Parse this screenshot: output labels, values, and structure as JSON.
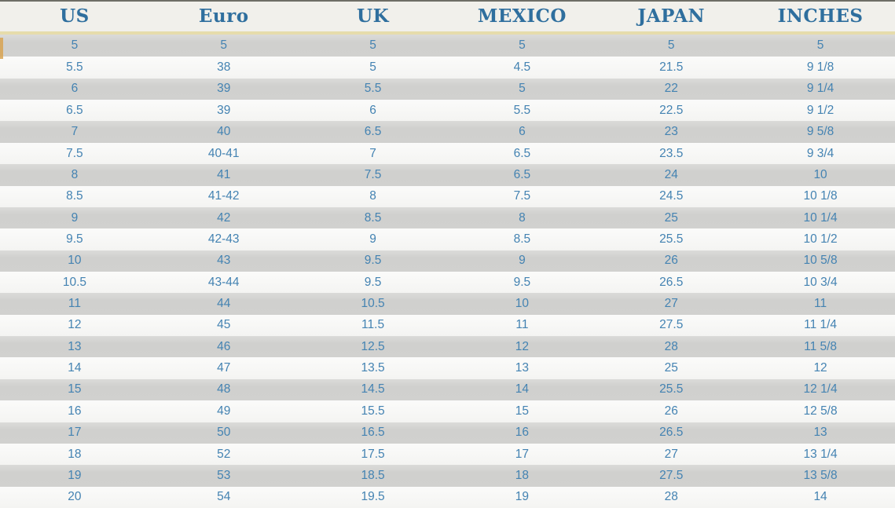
{
  "table": {
    "headers": [
      "US",
      "Euro",
      "UK",
      "MEXICO",
      "JAPAN",
      "INCHES"
    ],
    "rows": [
      [
        "5",
        "5",
        "5",
        "5",
        "5",
        "5"
      ],
      [
        "5.5",
        "38",
        "5",
        "4.5",
        "21.5",
        "9 1/8"
      ],
      [
        "6",
        "39",
        "5.5",
        "5",
        "22",
        "9 1/4"
      ],
      [
        "6.5",
        "39",
        "6",
        "5.5",
        "22.5",
        "9 1/2"
      ],
      [
        "7",
        "40",
        "6.5",
        "6",
        "23",
        "9 5/8"
      ],
      [
        "7.5",
        "40-41",
        "7",
        "6.5",
        "23.5",
        "9 3/4"
      ],
      [
        "8",
        "41",
        "7.5",
        "6.5",
        "24",
        "10"
      ],
      [
        "8.5",
        "41-42",
        "8",
        "7.5",
        "24.5",
        "10 1/8"
      ],
      [
        "9",
        "42",
        "8.5",
        "8",
        "25",
        "10 1/4"
      ],
      [
        "9.5",
        "42-43",
        "9",
        "8.5",
        "25.5",
        "10 1/2"
      ],
      [
        "10",
        "43",
        "9.5",
        "9",
        "26",
        "10 5/8"
      ],
      [
        "10.5",
        "43-44",
        "9.5",
        "9.5",
        "26.5",
        "10 3/4"
      ],
      [
        "11",
        "44",
        "10.5",
        "10",
        "27",
        "11"
      ],
      [
        "12",
        "45",
        "11.5",
        "11",
        "27.5",
        "11 1/4"
      ],
      [
        "13",
        "46",
        "12.5",
        "12",
        "28",
        "11 5/8"
      ],
      [
        "14",
        "47",
        "13.5",
        "13",
        "25",
        "12"
      ],
      [
        "15",
        "48",
        "14.5",
        "14",
        "25.5",
        "12 1/4"
      ],
      [
        "16",
        "49",
        "15.5",
        "15",
        "26",
        "12 5/8"
      ],
      [
        "17",
        "50",
        "16.5",
        "16",
        "26.5",
        "13"
      ],
      [
        "18",
        "52",
        "17.5",
        "17",
        "27",
        "13 1/4"
      ],
      [
        "19",
        "53",
        "18.5",
        "18",
        "27.5",
        "13 5/8"
      ],
      [
        "20",
        "54",
        "19.5",
        "19",
        "28",
        "14"
      ]
    ]
  },
  "colors": {
    "header_text": "#2f6f9e",
    "cell_text": "#4483b2",
    "header_bg": "#f1f0eb",
    "accent_line": "#e6dcab",
    "row_gray": "#d1d1cf",
    "row_light": "#f6f6f4",
    "top_border": "#6e6e66"
  },
  "chart_data": {
    "type": "table",
    "title": "Shoe size conversion table",
    "columns": [
      "US",
      "Euro",
      "UK",
      "MEXICO",
      "JAPAN",
      "INCHES"
    ],
    "rows": [
      [
        "5",
        "5",
        "5",
        "5",
        "5",
        "5"
      ],
      [
        "5.5",
        "38",
        "5",
        "4.5",
        "21.5",
        "9 1/8"
      ],
      [
        "6",
        "39",
        "5.5",
        "5",
        "22",
        "9 1/4"
      ],
      [
        "6.5",
        "39",
        "6",
        "5.5",
        "22.5",
        "9 1/2"
      ],
      [
        "7",
        "40",
        "6.5",
        "6",
        "23",
        "9 5/8"
      ],
      [
        "7.5",
        "40-41",
        "7",
        "6.5",
        "23.5",
        "9 3/4"
      ],
      [
        "8",
        "41",
        "7.5",
        "6.5",
        "24",
        "10"
      ],
      [
        "8.5",
        "41-42",
        "8",
        "7.5",
        "24.5",
        "10 1/8"
      ],
      [
        "9",
        "42",
        "8.5",
        "8",
        "25",
        "10 1/4"
      ],
      [
        "9.5",
        "42-43",
        "9",
        "8.5",
        "25.5",
        "10 1/2"
      ],
      [
        "10",
        "43",
        "9.5",
        "9",
        "26",
        "10 5/8"
      ],
      [
        "10.5",
        "43-44",
        "9.5",
        "9.5",
        "26.5",
        "10 3/4"
      ],
      [
        "11",
        "44",
        "10.5",
        "10",
        "27",
        "11"
      ],
      [
        "12",
        "45",
        "11.5",
        "11",
        "27.5",
        "11 1/4"
      ],
      [
        "13",
        "46",
        "12.5",
        "12",
        "28",
        "11 5/8"
      ],
      [
        "14",
        "47",
        "13.5",
        "13",
        "25",
        "12"
      ],
      [
        "15",
        "48",
        "14.5",
        "14",
        "25.5",
        "12 1/4"
      ],
      [
        "16",
        "49",
        "15.5",
        "15",
        "26",
        "12 5/8"
      ],
      [
        "17",
        "50",
        "16.5",
        "16",
        "26.5",
        "13"
      ],
      [
        "18",
        "52",
        "17.5",
        "17",
        "27",
        "13 1/4"
      ],
      [
        "19",
        "53",
        "18.5",
        "18",
        "27.5",
        "13 5/8"
      ],
      [
        "20",
        "54",
        "19.5",
        "19",
        "28",
        "14"
      ]
    ],
    "layout": {
      "striped_rows": true,
      "header_divider_color": "#e6dcab",
      "legend": "none",
      "grid": "off"
    }
  }
}
